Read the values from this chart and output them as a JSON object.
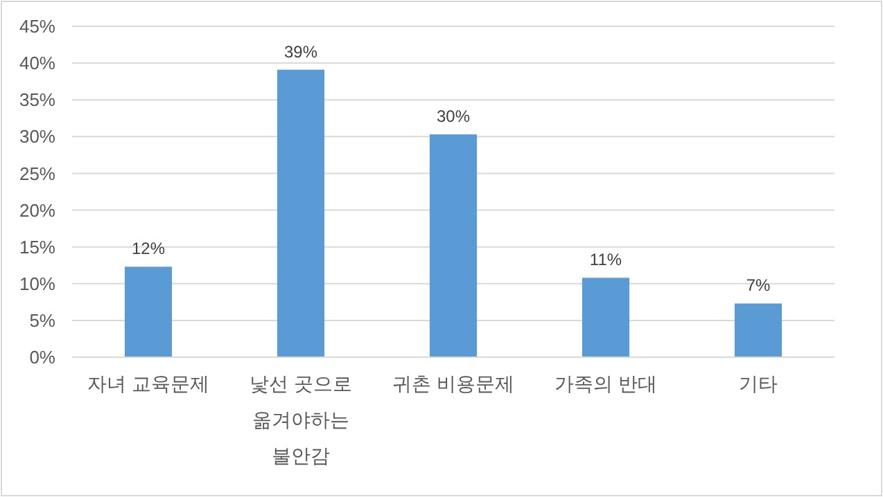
{
  "chart_data": {
    "type": "bar",
    "categories": [
      "자녀 교육문제",
      "낯선 곳으로 옮겨야하는 불안감",
      "귀촌 비용문제",
      "가족의 반대",
      "기타"
    ],
    "values": [
      12.3,
      39.1,
      30.3,
      10.8,
      7.3
    ],
    "value_labels": [
      "12%",
      "39%",
      "30%",
      "11%",
      "7%"
    ],
    "color": "#5b9bd5",
    "ylim": [
      0,
      45
    ],
    "yticks": [
      {
        "value": 0,
        "label": "0%"
      },
      {
        "value": 5,
        "label": "5%"
      },
      {
        "value": 10,
        "label": "10%"
      },
      {
        "value": 15,
        "label": "15%"
      },
      {
        "value": 20,
        "label": "20%"
      },
      {
        "value": 25,
        "label": "25%"
      },
      {
        "value": 30,
        "label": "30%"
      },
      {
        "value": 35,
        "label": "35%"
      },
      {
        "value": 40,
        "label": "40%"
      },
      {
        "value": 45,
        "label": "45%"
      }
    ],
    "grid": "y"
  }
}
